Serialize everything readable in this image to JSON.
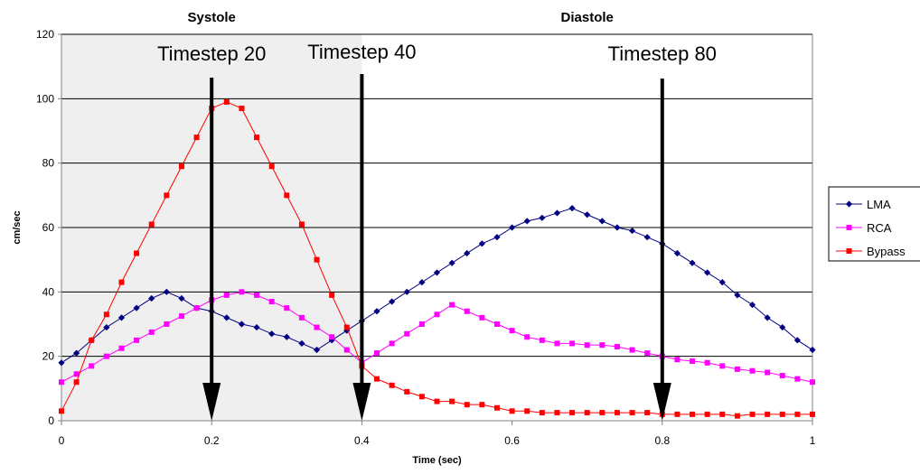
{
  "chart_data": {
    "type": "line",
    "xlabel": "Time (sec)",
    "ylabel": "cm/sec",
    "xlim": [
      0,
      1
    ],
    "ylim": [
      0,
      120
    ],
    "x_ticks": [
      "0",
      "0.2",
      "0.4",
      "0.6",
      "0.8",
      "1"
    ],
    "y_ticks": [
      "0",
      "20",
      "40",
      "60",
      "80",
      "100",
      "120"
    ],
    "grid": "horizontal",
    "legend_position": "right",
    "shaded_region": [
      0,
      0.4
    ],
    "phase_labels": [
      {
        "text": "Systole",
        "x": 0.2
      },
      {
        "text": "Diastole",
        "x": 0.7
      }
    ],
    "annotations": [
      {
        "text": "Timestep 20",
        "x": 0.2
      },
      {
        "text": "Timestep 40",
        "x": 0.4
      },
      {
        "text": "Timestep 80",
        "x": 0.8
      }
    ],
    "series": [
      {
        "name": "LMA",
        "color": "#000080",
        "marker": "diamond",
        "x": [
          0,
          0.02,
          0.04,
          0.06,
          0.08,
          0.1,
          0.12,
          0.14,
          0.16,
          0.18,
          0.2,
          0.22,
          0.24,
          0.26,
          0.28,
          0.3,
          0.32,
          0.34,
          0.36,
          0.38,
          0.4,
          0.42,
          0.44,
          0.46,
          0.48,
          0.5,
          0.52,
          0.54,
          0.56,
          0.58,
          0.6,
          0.62,
          0.64,
          0.66,
          0.68,
          0.7,
          0.72,
          0.74,
          0.76,
          0.78,
          0.8,
          0.82,
          0.84,
          0.86,
          0.88,
          0.9,
          0.92,
          0.94,
          0.96,
          0.98,
          1.0
        ],
        "y": [
          18,
          21,
          25,
          29,
          32,
          35,
          38,
          40,
          38,
          35,
          34,
          32,
          30,
          29,
          27,
          26,
          24,
          22,
          25,
          28,
          31,
          34,
          37,
          40,
          43,
          46,
          49,
          52,
          55,
          57,
          60,
          62,
          63,
          64.5,
          66,
          64,
          62,
          60,
          59,
          57,
          55,
          52,
          49,
          46,
          43,
          39,
          36,
          32,
          29,
          25,
          22
        ]
      },
      {
        "name": "RCA",
        "color": "#ff00ff",
        "marker": "square",
        "x": [
          0,
          0.02,
          0.04,
          0.06,
          0.08,
          0.1,
          0.12,
          0.14,
          0.16,
          0.18,
          0.2,
          0.22,
          0.24,
          0.26,
          0.28,
          0.3,
          0.32,
          0.34,
          0.36,
          0.38,
          0.4,
          0.42,
          0.44,
          0.46,
          0.48,
          0.5,
          0.52,
          0.54,
          0.56,
          0.58,
          0.6,
          0.62,
          0.64,
          0.66,
          0.68,
          0.7,
          0.72,
          0.74,
          0.76,
          0.78,
          0.8,
          0.82,
          0.84,
          0.86,
          0.88,
          0.9,
          0.92,
          0.94,
          0.96,
          0.98,
          1.0
        ],
        "y": [
          12,
          14.5,
          17,
          20,
          22.5,
          25,
          27.5,
          30,
          32.5,
          35,
          37.5,
          39,
          40,
          39,
          37,
          35,
          32,
          29,
          26,
          22,
          18,
          21,
          24,
          27,
          30,
          33,
          36,
          34,
          32,
          30,
          28,
          26,
          25,
          24,
          24,
          23.5,
          23.5,
          23,
          22,
          21,
          20,
          19,
          18.5,
          18,
          17,
          16,
          15.5,
          15,
          14,
          13,
          12
        ]
      },
      {
        "name": "Bypass",
        "color": "#ff0000",
        "marker": "square",
        "x": [
          0,
          0.02,
          0.04,
          0.06,
          0.08,
          0.1,
          0.12,
          0.14,
          0.16,
          0.18,
          0.2,
          0.22,
          0.24,
          0.26,
          0.28,
          0.3,
          0.32,
          0.34,
          0.36,
          0.38,
          0.4,
          0.42,
          0.44,
          0.46,
          0.48,
          0.5,
          0.52,
          0.54,
          0.56,
          0.58,
          0.6,
          0.62,
          0.64,
          0.66,
          0.68,
          0.7,
          0.72,
          0.74,
          0.76,
          0.78,
          0.8,
          0.82,
          0.84,
          0.86,
          0.88,
          0.9,
          0.92,
          0.94,
          0.96,
          0.98,
          1.0
        ],
        "y": [
          3,
          12,
          25,
          33,
          43,
          52,
          61,
          70,
          79,
          88,
          97,
          99,
          97,
          88,
          79,
          70,
          61,
          50,
          39,
          29,
          17,
          13,
          11,
          9,
          7.5,
          6,
          6,
          5,
          5,
          4,
          3,
          3,
          2.5,
          2.5,
          2.5,
          2.5,
          2.5,
          2.5,
          2.5,
          2.5,
          2,
          2,
          2,
          2,
          2,
          1.5,
          2,
          2,
          2,
          2,
          2
        ]
      }
    ]
  }
}
